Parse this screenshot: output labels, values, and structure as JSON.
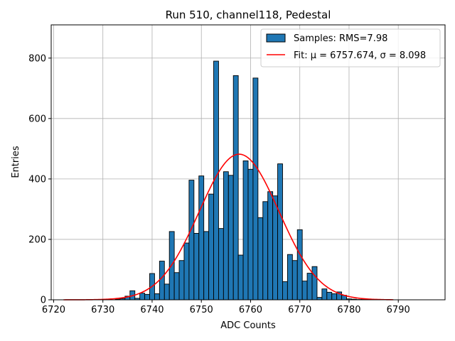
{
  "chart_data": {
    "type": "bar",
    "title": "Run 510, channel118, Pedestal",
    "xlabel": "ADC Counts",
    "ylabel": "Entries",
    "xlim": [
      6719.5,
      6799.5
    ],
    "ylim": [
      0,
      910
    ],
    "xticks": [
      6720,
      6730,
      6740,
      6750,
      6760,
      6770,
      6780,
      6790
    ],
    "yticks": [
      0,
      200,
      400,
      600,
      800
    ],
    "grid": true,
    "legend_location": "top-right",
    "colors": {
      "bars": "#1f77b4",
      "edges": "#000000",
      "fit": "#ff0000",
      "grid": "#b0b0b0"
    },
    "series": [
      {
        "name": "Samples: RMS=7.98",
        "type": "bar",
        "bin_width": 1,
        "bin_centers": [
          6733,
          6734,
          6735,
          6736,
          6737,
          6738,
          6739,
          6740,
          6741,
          6742,
          6743,
          6744,
          6745,
          6746,
          6747,
          6748,
          6749,
          6750,
          6751,
          6752,
          6753,
          6754,
          6755,
          6756,
          6757,
          6758,
          6759,
          6760,
          6761,
          6762,
          6763,
          6764,
          6765,
          6766,
          6767,
          6768,
          6769,
          6770,
          6771,
          6772,
          6773,
          6774,
          6775,
          6776,
          6777,
          6778,
          6779,
          6780,
          6781,
          6782,
          6783
        ],
        "values": [
          2,
          4,
          12,
          30,
          5,
          22,
          18,
          87,
          20,
          128,
          52,
          226,
          90,
          130,
          188,
          396,
          220,
          410,
          226,
          350,
          790,
          236,
          424,
          412,
          742,
          148,
          460,
          432,
          734,
          272,
          325,
          358,
          344,
          450,
          60,
          150,
          130,
          232,
          62,
          88,
          110,
          8,
          36,
          25,
          20,
          26,
          15,
          3,
          2,
          1,
          1
        ]
      },
      {
        "name": "Fit: μ = 6757.674, σ = 8.098",
        "type": "line",
        "mu": 6757.674,
        "sigma": 8.098,
        "amplitude": 482,
        "x_range": [
          6722,
          6789
        ]
      }
    ]
  }
}
